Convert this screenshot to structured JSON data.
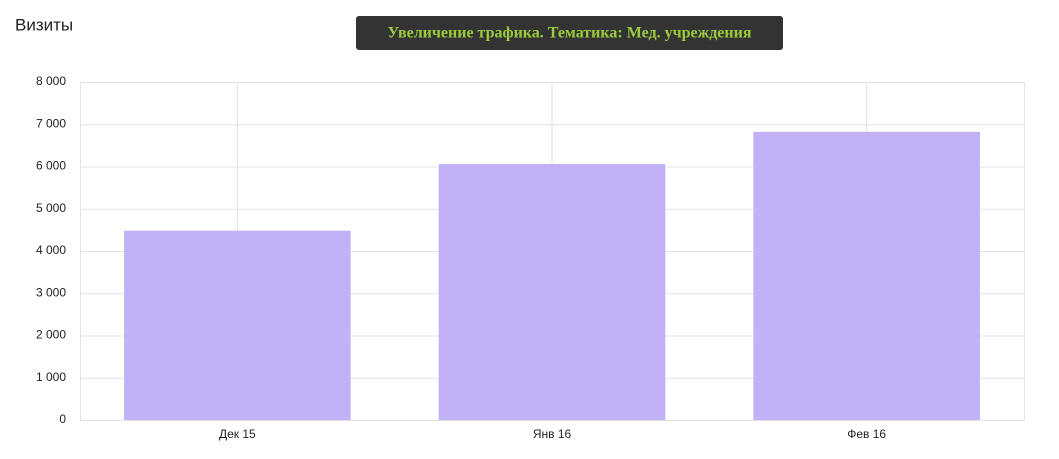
{
  "chart_data": {
    "type": "bar",
    "title": "Визиты",
    "annotation": "Увеличение трафика. Тематика: Мед. учреждения",
    "categories": [
      "Дек 15",
      "Янв 16",
      "Фев 16"
    ],
    "values": [
      4480,
      6060,
      6820
    ],
    "color": "#c3b1f8",
    "ylim": [
      0,
      8000
    ],
    "yticks": [
      0,
      {
        "value": 1000,
        "label": "1 000"
      },
      {
        "value": 2000,
        "label": "2 000"
      },
      {
        "value": 3000,
        "label": "3 000"
      },
      {
        "value": 4000,
        "label": "4 000"
      },
      {
        "value": 5000,
        "label": "5 000"
      },
      {
        "value": 6000,
        "label": "6 000"
      },
      {
        "value": 7000,
        "label": "7 000"
      },
      {
        "value": 8000,
        "label": "8 000"
      }
    ],
    "grid": true
  }
}
